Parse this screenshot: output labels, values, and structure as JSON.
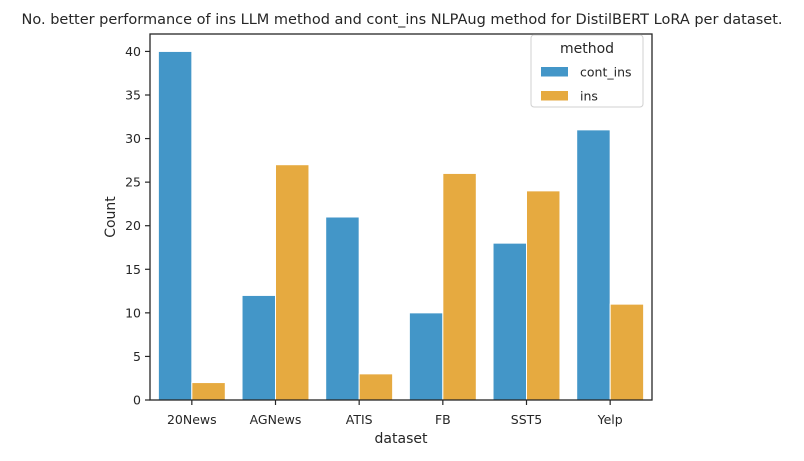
{
  "chart_data": {
    "type": "bar",
    "title": "No. better performance of ins LLM method and cont_ins NLPAug method for DistilBERT LoRA per dataset.",
    "xlabel": "dataset",
    "ylabel": "Count",
    "categories": [
      "20News",
      "AGNews",
      "ATIS",
      "FB",
      "SST5",
      "Yelp"
    ],
    "series": [
      {
        "name": "cont_ins",
        "values": [
          40,
          12,
          21,
          10,
          18,
          31
        ],
        "color": "#4396c8"
      },
      {
        "name": "ins",
        "values": [
          2,
          27,
          3,
          26,
          24,
          11
        ],
        "color": "#e6aa40"
      }
    ],
    "ylim": [
      0,
      42
    ],
    "yticks": [
      "0",
      "5",
      "10",
      "15",
      "20",
      "25",
      "30",
      "35",
      "40"
    ],
    "grid": false,
    "legend": {
      "title": "method",
      "placement": "top-right"
    }
  }
}
